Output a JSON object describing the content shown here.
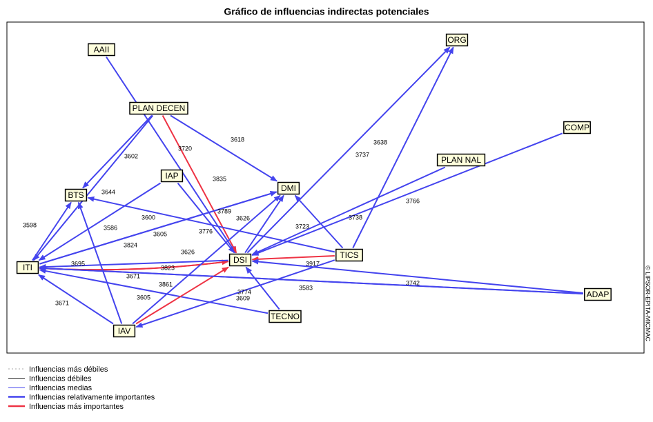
{
  "title": "Gráfico de influencias indirectas potenciales",
  "watermark": "© LIPSOR-EPITA-MICMAC",
  "nodes": [
    {
      "label": "AAII"
    },
    {
      "label": "PLAN DECEN"
    },
    {
      "label": "ORG"
    },
    {
      "label": "COMP"
    },
    {
      "label": "PLAN NAL"
    },
    {
      "label": "IAP"
    },
    {
      "label": "BTS"
    },
    {
      "label": "DMI"
    },
    {
      "label": "TICS"
    },
    {
      "label": "DSI"
    },
    {
      "label": "ITI"
    },
    {
      "label": "ADAP"
    },
    {
      "label": "TECNO"
    },
    {
      "label": "IAV"
    }
  ],
  "edges": [
    {
      "from": 0,
      "to": 9,
      "label": 3776,
      "color": "#4444ee"
    },
    {
      "from": 1,
      "to": 6,
      "label": 3602,
      "color": "#4444ee"
    },
    {
      "from": 1,
      "to": 10,
      "label": 3644,
      "color": "#4444ee"
    },
    {
      "from": 1,
      "to": 7,
      "label": 3618,
      "color": "#4444ee"
    },
    {
      "from": 1,
      "to": 9,
      "label": 3720,
      "color": "#ee3344"
    },
    {
      "from": 5,
      "to": 9,
      "label": 3835,
      "color": "#4444ee"
    },
    {
      "from": 5,
      "to": 10,
      "label": 3586,
      "color": "#4444ee"
    },
    {
      "from": 9,
      "to": 2,
      "label": 3737,
      "color": "#4444ee"
    },
    {
      "from": 8,
      "to": 2,
      "label": 3638,
      "color": "#4444ee"
    },
    {
      "from": 3,
      "to": 9,
      "label": 3766,
      "color": "#4444ee"
    },
    {
      "from": 4,
      "to": 9,
      "label": 3738,
      "color": "#4444ee"
    },
    {
      "from": 8,
      "to": 7,
      "label": 3723,
      "color": "#4444ee"
    },
    {
      "from": 8,
      "to": 6,
      "label": 3789,
      "color": "#4444ee"
    },
    {
      "from": 8,
      "to": 9,
      "color": "#ee3344"
    },
    {
      "from": 11,
      "to": 9,
      "label": 3917,
      "color": "#4444ee"
    },
    {
      "from": 11,
      "to": 10,
      "label": 3742,
      "color": "#4444ee"
    },
    {
      "from": 8,
      "to": 13,
      "label": 3583,
      "color": "#4444ee"
    },
    {
      "from": 10,
      "to": 6,
      "label": 3598,
      "color": "#4444ee"
    },
    {
      "from": 10,
      "to": 7,
      "label": 3600,
      "color": "#4444ee"
    },
    {
      "from": 10,
      "to": 9,
      "label": 3695,
      "color": "#ee3344"
    },
    {
      "from": 9,
      "to": 10,
      "label": 3626,
      "color": "#ee3344"
    },
    {
      "from": 9,
      "to": 10,
      "label": 3823,
      "color": "#4444ee"
    },
    {
      "from": 12,
      "to": 10,
      "label": 3861,
      "color": "#4444ee"
    },
    {
      "from": 12,
      "to": 9,
      "label": 3774,
      "color": "#4444ee"
    },
    {
      "from": 13,
      "to": 10,
      "label": 3671,
      "color": "#4444ee"
    },
    {
      "from": 13,
      "to": 6,
      "label": 3605,
      "color": "#4444ee"
    },
    {
      "from": 13,
      "to": 7,
      "label": 3605,
      "color": "#4444ee"
    },
    {
      "from": 13,
      "to": 9,
      "label": 3609,
      "color": "#ee3344"
    },
    {
      "from": 9,
      "to": 7,
      "label": 3626,
      "color": "#4444ee"
    },
    {
      "from": 10,
      "to": 7,
      "label": 3824,
      "color": "#4444ee"
    },
    {
      "from": 11,
      "to": 10,
      "label": 3671,
      "color": "#4444ee"
    }
  ],
  "legend": [
    {
      "label": "Influencias más débiles",
      "color": "#aaaaaa",
      "style": "dotted"
    },
    {
      "label": "Influencias débiles",
      "color": "#333333",
      "style": "thin"
    },
    {
      "label": "Influencias medias",
      "color": "#4444ee",
      "style": "thin"
    },
    {
      "label": "Influencias relativamente importantes",
      "color": "#4444ee",
      "style": "thick"
    },
    {
      "label": "Influencias más importantes",
      "color": "#ee3344",
      "style": "thick"
    }
  ]
}
